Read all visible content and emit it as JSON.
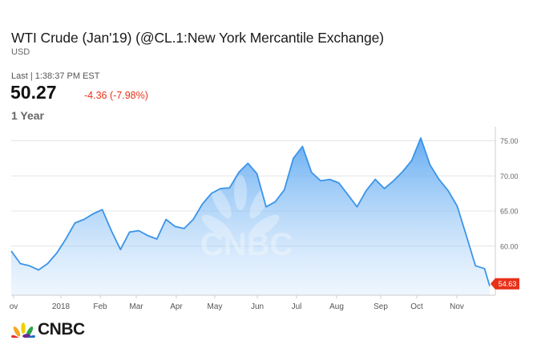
{
  "header": {
    "title": "WTI Crude (Jan'19) (@CL.1:New York Mercantile Exchange)",
    "currency": "USD",
    "last_label": "Last | 1:38:37 PM EST",
    "price": "50.27",
    "change": "-4.36 (-7.98%)",
    "range": "1 Year"
  },
  "colors": {
    "line": "#3b94e8",
    "negative": "#e8311a",
    "area_top": "#4a9ef0",
    "grid": "#e4e4e4"
  },
  "watermark": "CNBC",
  "logo": {
    "text": "CNBC",
    "icon": "peacock-icon"
  },
  "chart_data": {
    "type": "area",
    "y_ticks": [
      "75.00",
      "70.00",
      "65.00",
      "60.00"
    ],
    "x_ticks": [
      "ov",
      "2018",
      "Feb",
      "Mar",
      "Apr",
      "May",
      "Jun",
      "Jul",
      "Aug",
      "Sep",
      "Oct",
      "Nov"
    ],
    "ylim": [
      53,
      77
    ],
    "current_label": "54.63",
    "grid": true,
    "x": [
      "2017-11-20",
      "2017-11-27",
      "2017-12-04",
      "2017-12-11",
      "2017-12-18",
      "2017-12-25",
      "2018-01-01",
      "2018-01-08",
      "2018-01-15",
      "2018-01-22",
      "2018-01-29",
      "2018-02-05",
      "2018-02-12",
      "2018-02-19",
      "2018-02-26",
      "2018-03-05",
      "2018-03-12",
      "2018-03-19",
      "2018-03-26",
      "2018-04-02",
      "2018-04-09",
      "2018-04-16",
      "2018-04-23",
      "2018-04-30",
      "2018-05-07",
      "2018-05-14",
      "2018-05-21",
      "2018-05-28",
      "2018-06-04",
      "2018-06-11",
      "2018-06-18",
      "2018-06-25",
      "2018-07-02",
      "2018-07-09",
      "2018-07-16",
      "2018-07-23",
      "2018-07-30",
      "2018-08-06",
      "2018-08-13",
      "2018-08-20",
      "2018-08-27",
      "2018-09-03",
      "2018-09-10",
      "2018-09-17",
      "2018-09-24",
      "2018-10-01",
      "2018-10-08",
      "2018-10-15",
      "2018-10-22",
      "2018-10-29",
      "2018-11-05",
      "2018-11-12",
      "2018-11-19",
      "2018-11-23"
    ],
    "values": [
      59.3,
      57.5,
      57.2,
      56.6,
      57.5,
      59.0,
      61.0,
      63.3,
      63.8,
      64.6,
      65.2,
      62.2,
      59.5,
      62.0,
      62.2,
      61.5,
      61.0,
      63.8,
      62.8,
      62.5,
      63.8,
      66.0,
      67.5,
      68.2,
      68.3,
      70.5,
      71.8,
      70.3,
      65.6,
      66.3,
      68.0,
      72.5,
      74.2,
      70.5,
      69.3,
      69.5,
      69.0,
      67.3,
      65.6,
      67.9,
      69.5,
      68.2,
      69.3,
      70.6,
      72.2,
      75.4,
      71.6,
      69.5,
      67.9,
      65.7,
      61.5,
      57.2,
      56.8,
      54.3
    ]
  }
}
